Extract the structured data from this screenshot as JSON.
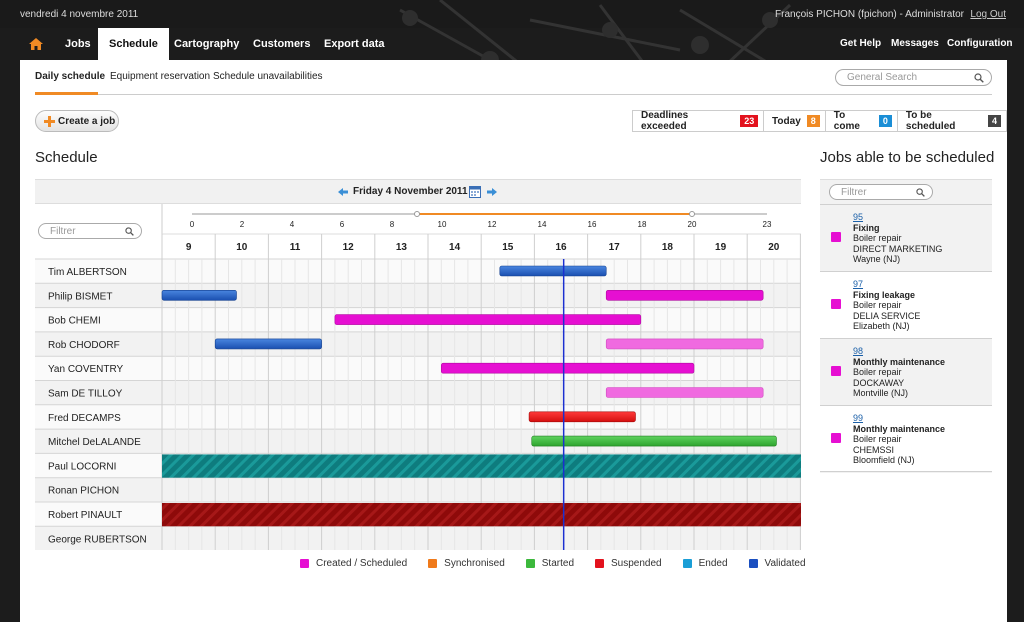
{
  "topbar": {
    "date": "vendredi 4 novembre 2011",
    "user": "François PICHON (fpichon) - Administrator",
    "logout": "Log Out"
  },
  "nav": {
    "home_icon": "home-icon",
    "tabs": [
      {
        "label": "Jobs"
      },
      {
        "label": "Schedule",
        "active": true
      },
      {
        "label": "Cartography"
      },
      {
        "label": "Customers"
      },
      {
        "label": "Export data"
      }
    ],
    "right": [
      {
        "label": "Get Help"
      },
      {
        "label": "Messages"
      },
      {
        "label": "Configuration"
      }
    ]
  },
  "subnav": {
    "items": [
      {
        "label": "Daily schedule",
        "active": true
      },
      {
        "label": "Equipment reservation"
      },
      {
        "label": "Schedule unavailabilities"
      }
    ],
    "search_placeholder": "General Search"
  },
  "toolbar": {
    "create_label": "Create a job",
    "counters": [
      {
        "label": "Deadlines exceeded",
        "value": "23",
        "color": "#e3121d"
      },
      {
        "label": "Today",
        "value": "8",
        "color": "#f08a24"
      },
      {
        "label": "To come",
        "value": "0",
        "color": "#1a8ed6"
      },
      {
        "label": "To be scheduled",
        "value": "4",
        "color": "#444444"
      }
    ]
  },
  "schedule": {
    "heading": "Schedule",
    "date": "Friday 4 November 2011",
    "filter_placeholder": "Filtrer",
    "slider_ticks": [
      "0",
      "2",
      "4",
      "6",
      "8",
      "10",
      "12",
      "14",
      "16",
      "18",
      "20",
      "23"
    ],
    "slider_range": [
      9,
      20
    ],
    "hours": [
      "9",
      "10",
      "11",
      "12",
      "13",
      "14",
      "15",
      "16",
      "17",
      "18",
      "19",
      "20"
    ],
    "now_hour": 16.55,
    "rows": [
      {
        "name": "Tim ALBERTSON",
        "bars": [
          {
            "start": 15.35,
            "end": 17.35,
            "status": "validated"
          }
        ]
      },
      {
        "name": "Philip BISMET",
        "bars": [
          {
            "start": 9.0,
            "end": 10.4,
            "status": "validated"
          },
          {
            "start": 17.35,
            "end": 20.3,
            "status": "created"
          }
        ]
      },
      {
        "name": "Bob CHEMI",
        "bars": [
          {
            "start": 12.25,
            "end": 18.0,
            "status": "created"
          }
        ]
      },
      {
        "name": "Rob CHODORF",
        "bars": [
          {
            "start": 10.0,
            "end": 12.0,
            "status": "validated"
          },
          {
            "start": 17.35,
            "end": 20.3,
            "status": "created-light"
          }
        ]
      },
      {
        "name": "Yan COVENTRY",
        "bars": [
          {
            "start": 14.25,
            "end": 19.0,
            "status": "created"
          }
        ]
      },
      {
        "name": "Sam DE TILLOY",
        "bars": [
          {
            "start": 17.35,
            "end": 20.3,
            "status": "created-light"
          }
        ]
      },
      {
        "name": "Fred DECAMPS",
        "bars": [
          {
            "start": 15.9,
            "end": 17.9,
            "status": "suspended"
          }
        ]
      },
      {
        "name": "Mitchel DeLALANDE",
        "bars": [
          {
            "start": 15.95,
            "end": 20.55,
            "status": "started"
          }
        ]
      },
      {
        "name": "Paul LOCORNI",
        "unavailable": "teal"
      },
      {
        "name": "Ronan PICHON"
      },
      {
        "name": "Robert PINAULT",
        "unavailable": "darkred"
      },
      {
        "name": "George RUBERTSON"
      }
    ],
    "legend": [
      {
        "label": "Created / Scheduled",
        "color": "#e60fd2"
      },
      {
        "label": "Synchronised",
        "color": "#f07a1a"
      },
      {
        "label": "Started",
        "color": "#3cb83c"
      },
      {
        "label": "Suspended",
        "color": "#e3121d"
      },
      {
        "label": "Ended",
        "color": "#1a9ed6"
      },
      {
        "label": "Validated",
        "color": "#1a4fc0"
      }
    ]
  },
  "jobs_panel": {
    "heading": "Jobs able to be scheduled",
    "filter_placeholder": "Filtrer",
    "jobs": [
      {
        "id": "95",
        "title": "Fixing",
        "type": "Boiler repair",
        "customer": "DIRECT MARKETING",
        "city": "Wayne (NJ)"
      },
      {
        "id": "97",
        "title": "Fixing leakage",
        "type": "Boiler repair",
        "customer": "DELIA SERVICE",
        "city": "Elizabeth (NJ)"
      },
      {
        "id": "98",
        "title": "Monthly maintenance",
        "type": "Boiler repair",
        "customer": "DOCKAWAY",
        "city": "Montville (NJ)"
      },
      {
        "id": "99",
        "title": "Monthly maintenance",
        "type": "Boiler repair",
        "customer": "CHEMSSI",
        "city": "Bloomfield (NJ)"
      }
    ]
  }
}
